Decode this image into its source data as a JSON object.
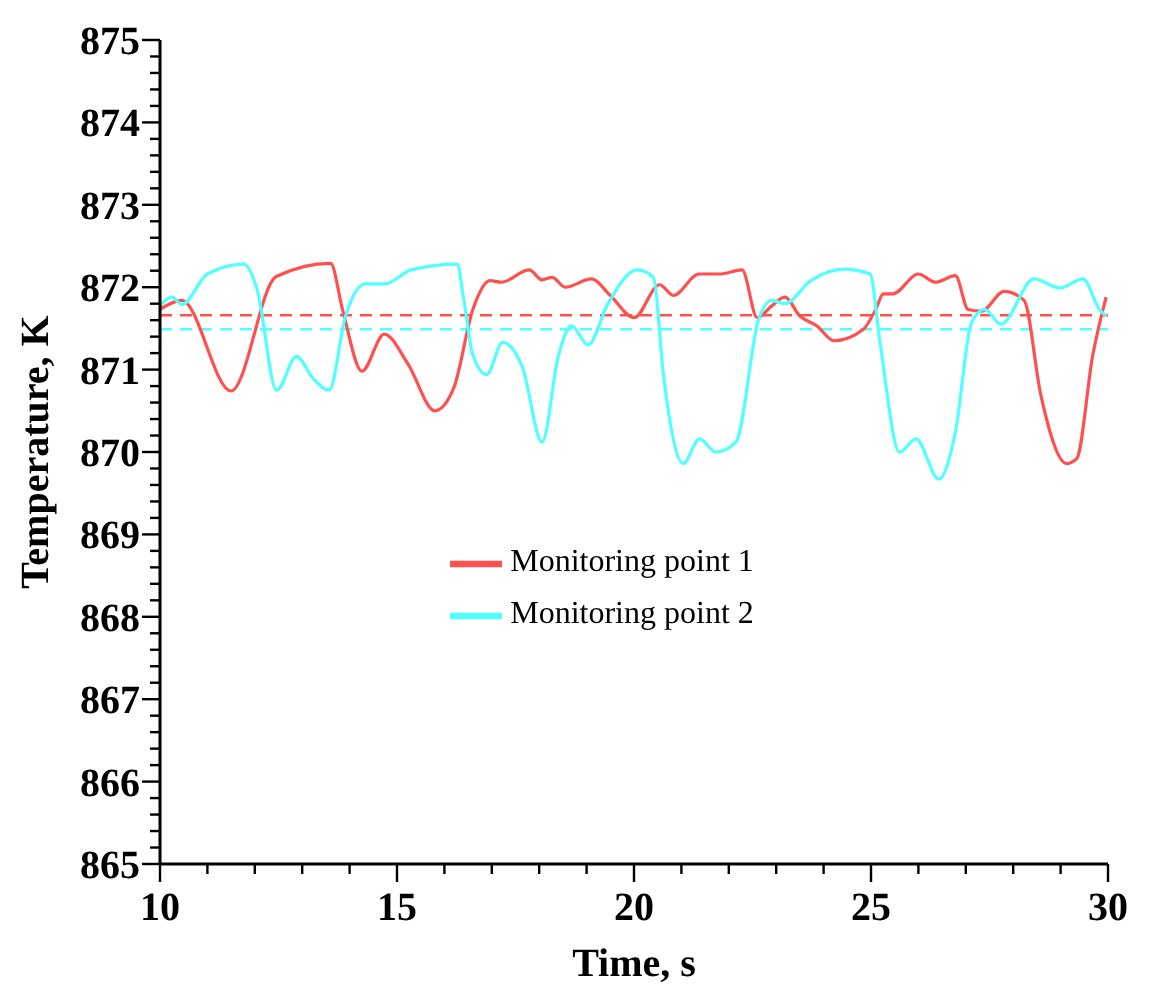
{
  "chart_data": {
    "type": "line",
    "xlabel": "Time, s",
    "ylabel": "Temperature, K",
    "xlim": [
      10,
      30
    ],
    "ylim": [
      865,
      875
    ],
    "xticks": [
      10,
      {
        "value": 11,
        "label": null
      },
      {
        "value": 12,
        "label": null
      },
      {
        "value": 13,
        "label": null
      },
      {
        "value": 14,
        "label": null
      },
      15,
      {
        "value": 16,
        "label": null
      },
      {
        "value": 17,
        "label": null
      },
      {
        "value": 18,
        "label": null
      },
      {
        "value": 19,
        "label": null
      },
      20,
      {
        "value": 21,
        "label": null
      },
      {
        "value": 22,
        "label": null
      },
      {
        "value": 23,
        "label": null
      },
      {
        "value": 24,
        "label": null
      },
      25,
      {
        "value": 26,
        "label": null
      },
      {
        "value": 27,
        "label": null
      },
      {
        "value": 28,
        "label": null
      },
      {
        "value": 29,
        "label": null
      },
      30
    ],
    "yticks": [
      865,
      {
        "value": 865.2,
        "label": null
      },
      {
        "value": 865.4,
        "label": null
      },
      {
        "value": 865.6,
        "label": null
      },
      {
        "value": 865.8,
        "label": null
      },
      866,
      {
        "value": 866.2,
        "label": null
      },
      {
        "value": 866.4,
        "label": null
      },
      {
        "value": 866.6,
        "label": null
      },
      {
        "value": 866.8,
        "label": null
      },
      867,
      {
        "value": 867.2,
        "label": null
      },
      {
        "value": 867.4,
        "label": null
      },
      {
        "value": 867.6,
        "label": null
      },
      {
        "value": 867.8,
        "label": null
      },
      868,
      {
        "value": 868.2,
        "label": null
      },
      {
        "value": 868.4,
        "label": null
      },
      {
        "value": 868.6,
        "label": null
      },
      {
        "value": 868.8,
        "label": null
      },
      869,
      {
        "value": 869.2,
        "label": null
      },
      {
        "value": 869.4,
        "label": null
      },
      {
        "value": 869.6,
        "label": null
      },
      {
        "value": 869.8,
        "label": null
      },
      870,
      {
        "value": 870.2,
        "label": null
      },
      {
        "value": 870.4,
        "label": null
      },
      {
        "value": 870.6,
        "label": null
      },
      {
        "value": 870.8,
        "label": null
      },
      871,
      {
        "value": 871.2,
        "label": null
      },
      {
        "value": 871.4,
        "label": null
      },
      {
        "value": 871.6,
        "label": null
      },
      {
        "value": 871.8,
        "label": null
      },
      872,
      {
        "value": 872.2,
        "label": null
      },
      {
        "value": 872.4,
        "label": null
      },
      {
        "value": 872.6,
        "label": null
      },
      {
        "value": 872.8,
        "label": null
      },
      873,
      {
        "value": 873.2,
        "label": null
      },
      {
        "value": 873.4,
        "label": null
      },
      {
        "value": 873.6,
        "label": null
      },
      {
        "value": 873.8,
        "label": null
      },
      874,
      {
        "value": 874.2,
        "label": null
      },
      {
        "value": 874.4,
        "label": null
      },
      {
        "value": 874.6,
        "label": null
      },
      {
        "value": 874.8,
        "label": null
      },
      875
    ],
    "grid": false,
    "legend": "center",
    "marker": "none",
    "line_style": "solid",
    "series": [
      {
        "name": "Monitoring point 1",
        "color": "#ff5050",
        "x": [
          10,
          10.46,
          11.5,
          12.45,
          13.6,
          13.85,
          14.26,
          14.73,
          15.23,
          15.8,
          16.2,
          16.6,
          16.96,
          17.2,
          17.79,
          18.06,
          18.27,
          18.55,
          19.1,
          19.5,
          20.0,
          20.54,
          20.83,
          21.37,
          21.8,
          22.28,
          22.6,
          22.9,
          23.18,
          23.5,
          23.86,
          24.22,
          24.84,
          25.1,
          25.26,
          25.46,
          26.0,
          26.36,
          26.78,
          27.05,
          27.33,
          27.81,
          28.23,
          28.58,
          29.13,
          29.34,
          29.68,
          29.96
        ],
        "values": [
          871.73,
          871.84,
          870.74,
          872.13,
          872.29,
          871.73,
          870.98,
          871.43,
          871.07,
          870.5,
          870.78,
          871.73,
          872.08,
          872.06,
          872.21,
          872.09,
          872.12,
          872.0,
          872.1,
          871.9,
          871.63,
          872.03,
          871.9,
          872.16,
          872.16,
          872.21,
          871.63,
          871.77,
          871.88,
          871.65,
          871.53,
          871.35,
          871.49,
          871.73,
          871.92,
          871.92,
          872.16,
          872.06,
          872.14,
          871.73,
          871.71,
          871.95,
          871.84,
          870.7,
          869.86,
          869.92,
          871.18,
          871.88
        ]
      },
      {
        "name": "Monitoring point 2",
        "color": "#50ffff",
        "x": [
          10,
          10.25,
          10.46,
          11.0,
          11.77,
          12.05,
          12.46,
          12.88,
          13.22,
          13.57,
          13.91,
          14.33,
          14.74,
          15.3,
          16.27,
          16.4,
          16.6,
          16.89,
          17.23,
          17.65,
          18.06,
          18.41,
          18.68,
          19.03,
          19.45,
          20.07,
          20.41,
          20.62,
          21.04,
          21.38,
          21.73,
          22.15,
          22.63,
          22.9,
          23.18,
          23.73,
          24.43,
          24.98,
          25.19,
          25.6,
          25.95,
          26.43,
          26.78,
          27.12,
          27.4,
          27.74,
          28.44,
          28.99,
          29.47,
          29.82,
          29.96
        ],
        "values": [
          871.77,
          871.88,
          871.79,
          872.16,
          872.28,
          871.97,
          870.75,
          871.16,
          870.9,
          870.75,
          871.64,
          872.04,
          872.04,
          872.21,
          872.28,
          871.88,
          871.18,
          870.94,
          871.33,
          871.02,
          870.12,
          871.18,
          871.53,
          871.3,
          871.8,
          872.21,
          872.12,
          870.94,
          869.86,
          870.16,
          870.0,
          870.12,
          871.61,
          871.84,
          871.8,
          872.08,
          872.22,
          872.16,
          871.33,
          870.0,
          870.16,
          869.67,
          870.24,
          871.57,
          871.73,
          871.55,
          872.1,
          871.99,
          872.1,
          871.73,
          871.65
        ]
      }
    ],
    "ref_lines": [
      {
        "axis": "y",
        "value": 871.66,
        "color": "#ff5050",
        "line_style": "dashed"
      },
      {
        "axis": "y",
        "value": 871.49,
        "color": "#50ffff",
        "line_style": "dashed"
      }
    ]
  }
}
